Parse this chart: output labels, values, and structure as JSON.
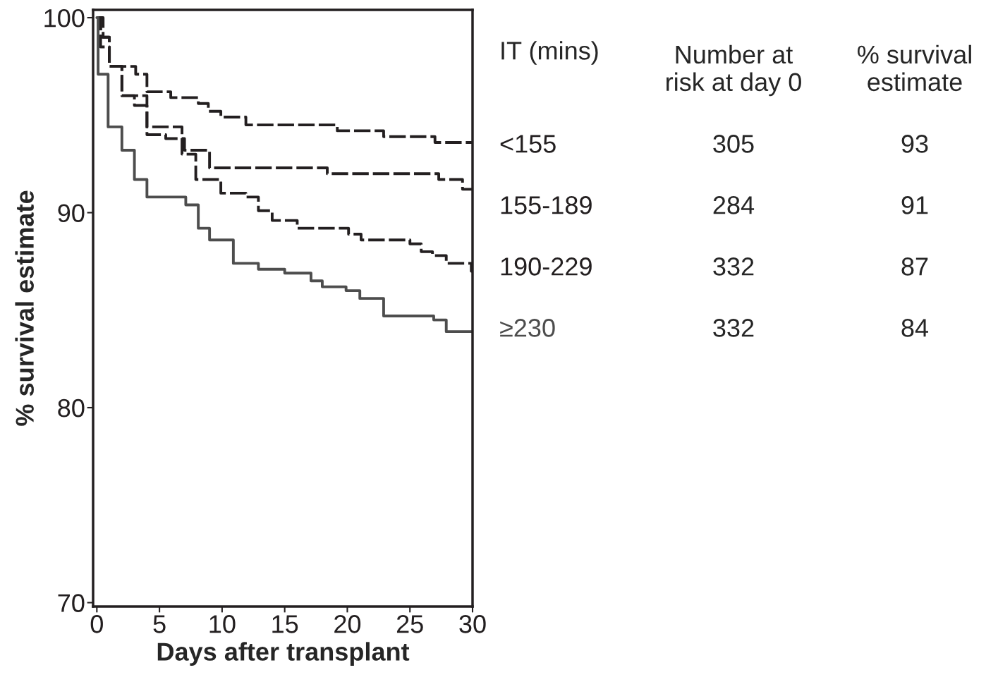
{
  "chart_data": {
    "type": "step",
    "xlabel": "Days after transplant",
    "ylabel": "% survival estimate",
    "xlim": [
      -0.3,
      30
    ],
    "ylim": [
      69.8,
      100.4
    ],
    "xticks": [
      0,
      5,
      10,
      15,
      20,
      25,
      30
    ],
    "yticks": [
      70,
      80,
      90,
      100
    ],
    "legend": "right",
    "legend_title": "IT (mins)",
    "grid": false,
    "annotations": [
      "Number at\nrisk at day 0",
      "% survival\nestimate",
      "305",
      "93",
      "284",
      "91",
      "332",
      "87",
      "332",
      "84"
    ],
    "series": [
      {
        "name": "<155",
        "color": "#231f20",
        "line_style": "dashed",
        "x": [
          0,
          0.5,
          1,
          3.1,
          4.0,
          5.9,
          8.1,
          8.9,
          9.9,
          11.9,
          19.2,
          22.9,
          27.0,
          30
        ],
        "values": [
          100,
          99,
          97.5,
          97.1,
          96.2,
          95.9,
          95.6,
          95.2,
          94.9,
          94.5,
          94.2,
          93.9,
          93.6,
          93.6
        ]
      },
      {
        "name": "155-189",
        "color": "#231f20",
        "line_style": "dashed",
        "x": [
          0,
          0.3,
          1,
          2,
          3,
          4,
          5.5,
          7,
          9,
          18.4,
          27.3,
          29.2,
          30
        ],
        "values": [
          100,
          98.5,
          97.5,
          96,
          95.5,
          94,
          93.8,
          93.2,
          92.3,
          92.0,
          91.7,
          91.2,
          91.2
        ]
      },
      {
        "name": "190-229",
        "color": "#231f20",
        "line_style": "dashed",
        "x": [
          0,
          0.3,
          1,
          2,
          4,
          6.8,
          7.9,
          9.9,
          11.9,
          12.9,
          14.0,
          16.0,
          20.1,
          21.1,
          25.0,
          25.9,
          26.8,
          27.9,
          29.9,
          30
        ],
        "values": [
          100,
          99,
          97.5,
          96,
          94.4,
          93.0,
          91.7,
          91.0,
          90.8,
          90.1,
          89.6,
          89.2,
          88.9,
          88.6,
          88.4,
          88.0,
          87.8,
          87.4,
          87.0,
          87.0
        ]
      },
      {
        "name": "≥230",
        "color": "#4d4d4d",
        "line_style": "solid",
        "x": [
          0,
          0.1,
          0.9,
          2.0,
          3.0,
          4.0,
          7.1,
          8.1,
          9.0,
          10.9,
          12.9,
          15.0,
          17.1,
          18.0,
          19.9,
          21.0,
          22.9,
          26.9,
          27.9,
          30
        ],
        "values": [
          100,
          97.1,
          94.4,
          93.2,
          91.7,
          90.8,
          90.4,
          89.2,
          88.6,
          87.4,
          87.1,
          86.9,
          86.5,
          86.2,
          86.0,
          85.6,
          84.7,
          84.5,
          83.9,
          83.9
        ]
      }
    ]
  }
}
